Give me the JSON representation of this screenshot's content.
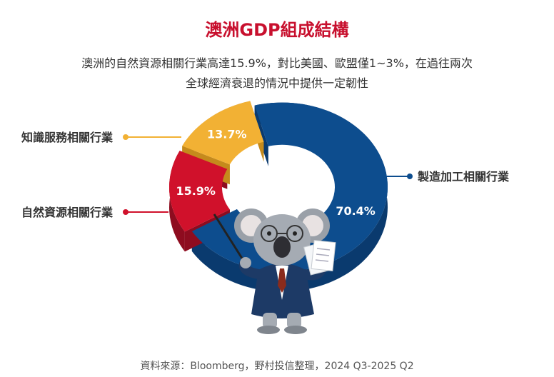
{
  "title": "澳洲GDP組成結構",
  "subtitle_line1": "澳洲的自然資源相關行業高達15.9%，對比美國、歐盟僅1~3%，在過往兩次",
  "subtitle_line2": "全球經濟衰退的情況中提供一定韌性",
  "source": "資料來源：Bloomberg，野村投信整理，2024 Q3-2025 Q2",
  "chart_data": {
    "type": "pie",
    "style": "3d-donut",
    "slices": [
      {
        "name": "製造加工相關行業",
        "value": 70.4,
        "label": "70.4%",
        "color": "#0d4d8e",
        "side_color": "#0a3a6e"
      },
      {
        "name": "自然資源相關行業",
        "value": 15.9,
        "label": "15.9%",
        "color": "#d0112b",
        "side_color": "#8e0c1f"
      },
      {
        "name": "知識服務相關行業",
        "value": 13.7,
        "label": "13.7%",
        "color": "#f2b134",
        "side_color": "#c58a1c"
      }
    ]
  },
  "illustration": "koala-presenter"
}
